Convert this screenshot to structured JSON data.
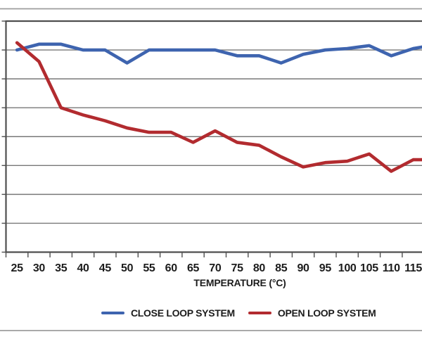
{
  "figure": {
    "background_color": "#ffffff",
    "frame_line_color": "#9d9d9d",
    "grid_color": "#787878",
    "axis_color": "#4f4f4f",
    "text_color": "#1c1c1c"
  },
  "chart_data": {
    "type": "line",
    "title": "",
    "note": "Left side of chart is cropped: y-axis value labels are cut off at the image edge. Values below are in gridline units (bottom axis = 0, top border = 8, one unit per horizontal gridline).",
    "x_axis": {
      "title": "TEMPERATURE (°C)",
      "tick_labels": [
        "25",
        "30",
        "35",
        "40",
        "45",
        "50",
        "55",
        "60",
        "65",
        "70",
        "75",
        "80",
        "85",
        "90",
        "95",
        "100",
        "105",
        "110",
        "115"
      ]
    },
    "y_axis": {
      "labels_visible": false,
      "gridline_count": 7,
      "units_range": [
        0,
        8
      ]
    },
    "categories": [
      25,
      30,
      35,
      40,
      45,
      50,
      55,
      60,
      65,
      70,
      75,
      80,
      85,
      90,
      95,
      100,
      105,
      110,
      115
    ],
    "series": [
      {
        "name": "CLOSE LOOP SYSTEM",
        "color": "#3E64AF",
        "values": [
          7.0,
          7.2,
          7.2,
          7.0,
          7.0,
          6.55,
          7.0,
          7.0,
          7.0,
          7.0,
          6.8,
          6.8,
          6.55,
          6.85,
          7.0,
          7.05,
          7.15,
          6.8,
          7.05
        ],
        "edge_value": 7.1
      },
      {
        "name": "OPEN LOOP SYSTEM",
        "color": "#B22B2F",
        "values": [
          7.25,
          6.6,
          5.0,
          4.75,
          4.55,
          4.3,
          4.15,
          4.15,
          3.8,
          4.2,
          3.8,
          3.7,
          3.3,
          2.95,
          3.1,
          3.15,
          3.4,
          2.8,
          3.2
        ],
        "edge_value": 3.2
      }
    ],
    "legend": {
      "position": "bottom",
      "entries": [
        {
          "label": "CLOSE LOOP SYSTEM",
          "color": "#3E64AF"
        },
        {
          "label": "OPEN LOOP SYSTEM",
          "color": "#B22B2F"
        }
      ]
    },
    "grid": "horizontal"
  }
}
